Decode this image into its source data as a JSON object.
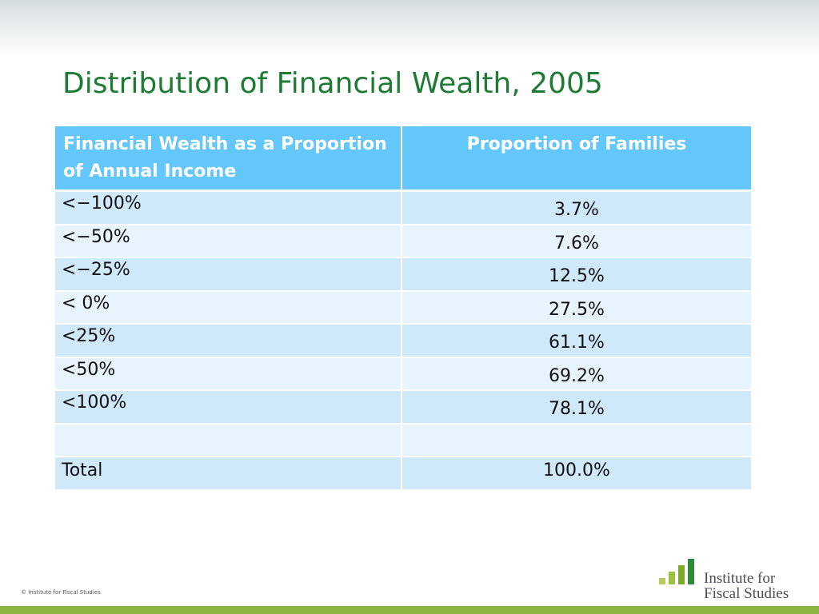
{
  "title": "Distribution of Financial Wealth, 2005",
  "table": {
    "header": [
      "Financial Wealth as a Proportion of Annual Income",
      "Proportion of Families"
    ],
    "rows": [
      [
        "<−100%",
        "3.7%"
      ],
      [
        "<−50%",
        "7.6%"
      ],
      [
        "<−25%",
        "12.5%"
      ],
      [
        "< 0%",
        "27.5%"
      ],
      [
        "<25%",
        "61.1%"
      ],
      [
        "<50%",
        "69.2%"
      ],
      [
        "<100%",
        "78.1%"
      ],
      null,
      [
        "Total",
        "100.0%"
      ]
    ]
  },
  "footer": {
    "copyright": "© Institute for Fiscal Studies",
    "logo_line1": "Institute for",
    "logo_line2": "Fiscal Studies"
  }
}
